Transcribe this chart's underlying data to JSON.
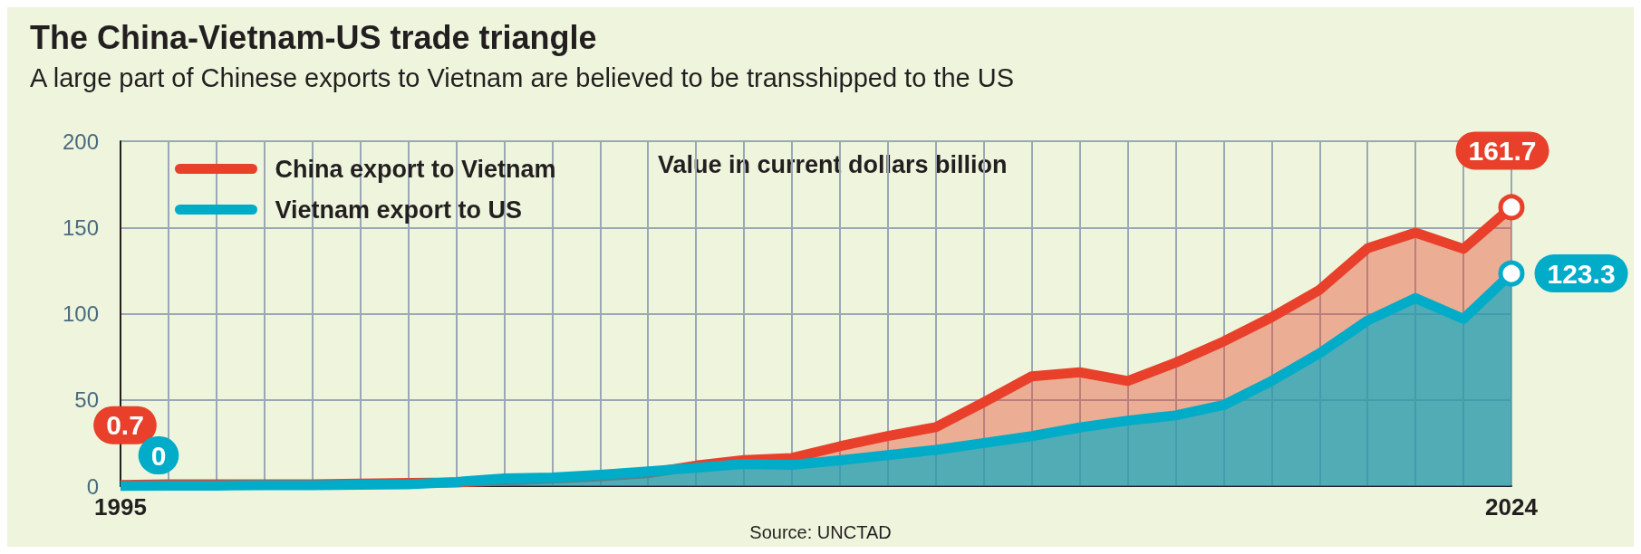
{
  "chart_data": {
    "type": "area",
    "title": "The China-Vietnam-US trade triangle",
    "subtitle": "A large part of Chinese exports to Vietnam are believed to be transshipped to the US",
    "x": [
      1995,
      1996,
      1997,
      1998,
      1999,
      2000,
      2001,
      2002,
      2003,
      2004,
      2005,
      2006,
      2007,
      2008,
      2009,
      2010,
      2011,
      2012,
      2013,
      2014,
      2015,
      2016,
      2017,
      2018,
      2019,
      2020,
      2021,
      2022,
      2023,
      2024
    ],
    "series": [
      {
        "name": "China export to Vietnam",
        "color": "#e8402a",
        "values": [
          0.7,
          1.0,
          1.1,
          1.0,
          1.0,
          1.5,
          1.8,
          2.1,
          3.2,
          4.3,
          5.6,
          7.5,
          11.9,
          15.1,
          16.3,
          23.1,
          29.1,
          34.2,
          48.6,
          63.7,
          66,
          61,
          71.6,
          83.9,
          97.9,
          113.8,
          137.9,
          147,
          137.6,
          161.7
        ],
        "value_labels": [
          "0.7",
          null,
          null,
          null,
          null,
          null,
          null,
          null,
          null,
          null,
          null,
          null,
          null,
          null,
          null,
          null,
          null,
          null,
          null,
          null,
          null,
          null,
          null,
          null,
          null,
          null,
          null,
          null,
          null,
          "161.7"
        ]
      },
      {
        "name": "Vietnam export to US",
        "color": "#00acc8",
        "values": [
          0,
          0.2,
          0.3,
          0.5,
          0.5,
          0.8,
          1.1,
          2.4,
          4.5,
          5.0,
          6.6,
          8.6,
          10.6,
          12.9,
          12.3,
          15,
          18,
          21,
          25,
          29,
          34,
          38,
          41,
          47,
          61,
          77,
          96,
          109,
          97,
          123.3
        ],
        "value_labels": [
          "0",
          null,
          null,
          null,
          null,
          null,
          null,
          null,
          null,
          null,
          null,
          null,
          null,
          null,
          null,
          null,
          null,
          null,
          null,
          null,
          null,
          null,
          null,
          null,
          null,
          null,
          null,
          null,
          null,
          "123.3"
        ]
      }
    ],
    "xlim": [
      1995,
      2024
    ],
    "xticks": [
      1995,
      {
        "value": 1996,
        "label": null
      },
      {
        "value": 1997,
        "label": null
      },
      {
        "value": 1998,
        "label": null
      },
      {
        "value": 1999,
        "label": null
      },
      {
        "value": 2000,
        "label": null
      },
      {
        "value": 2001,
        "label": null
      },
      {
        "value": 2002,
        "label": null
      },
      {
        "value": 2003,
        "label": null
      },
      {
        "value": 2004,
        "label": null
      },
      {
        "value": 2005,
        "label": null
      },
      {
        "value": 2006,
        "label": null
      },
      {
        "value": 2007,
        "label": null
      },
      {
        "value": 2008,
        "label": null
      },
      {
        "value": 2009,
        "label": null
      },
      {
        "value": 2010,
        "label": null
      },
      {
        "value": 2011,
        "label": null
      },
      {
        "value": 2012,
        "label": null
      },
      {
        "value": 2013,
        "label": null
      },
      {
        "value": 2014,
        "label": null
      },
      {
        "value": 2015,
        "label": null
      },
      {
        "value": 2016,
        "label": null
      },
      {
        "value": 2017,
        "label": null
      },
      {
        "value": 2018,
        "label": null
      },
      {
        "value": 2019,
        "label": null
      },
      {
        "value": 2020,
        "label": null
      },
      {
        "value": 2021,
        "label": null
      },
      {
        "value": 2022,
        "label": null
      },
      {
        "value": 2023,
        "label": null
      },
      2024
    ],
    "ylim": [
      0,
      200
    ],
    "yticks": [
      0,
      50,
      100,
      150,
      200
    ],
    "grid": true,
    "legend": "top left",
    "annotations": [
      "Value in current dollars billion",
      "Source: UNCTAD"
    ]
  }
}
